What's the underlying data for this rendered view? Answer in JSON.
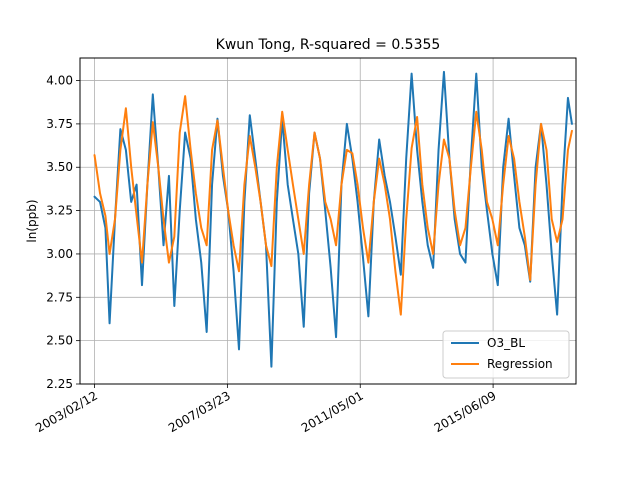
{
  "chart_data": {
    "type": "line",
    "title": "Kwun Tong, R-squared = 0.5355",
    "xlabel": "",
    "ylabel": "ln(ppb)",
    "x_tick_labels": [
      "2003/02/12",
      "2007/03/23",
      "2011/05/01",
      "2015/06/09"
    ],
    "y_ticks": [
      "2.25",
      "2.50",
      "2.75",
      "3.00",
      "3.25",
      "3.50",
      "3.75",
      "4.00"
    ],
    "ylim": [
      2.25,
      4.13
    ],
    "xlim": [
      "2002/09/01",
      "2017/12/31"
    ],
    "grid": true,
    "legend_position": "lower-right",
    "series": [
      {
        "name": "O3_BL",
        "color": "#1f77b4",
        "points": [
          [
            "2003/02/12",
            3.33
          ],
          [
            "2003/04/15",
            3.3
          ],
          [
            "2003/06/15",
            3.15
          ],
          [
            "2003/08/01",
            2.6
          ],
          [
            "2003/10/01",
            3.2
          ],
          [
            "2003/12/01",
            3.72
          ],
          [
            "2004/02/01",
            3.6
          ],
          [
            "2004/04/01",
            3.3
          ],
          [
            "2004/06/01",
            3.4
          ],
          [
            "2004/08/01",
            2.82
          ],
          [
            "2004/10/01",
            3.4
          ],
          [
            "2004/12/01",
            3.92
          ],
          [
            "2005/02/01",
            3.5
          ],
          [
            "2005/04/01",
            3.05
          ],
          [
            "2005/06/01",
            3.45
          ],
          [
            "2005/08/01",
            2.7
          ],
          [
            "2005/10/01",
            3.25
          ],
          [
            "2005/12/01",
            3.7
          ],
          [
            "2006/02/01",
            3.55
          ],
          [
            "2006/04/01",
            3.2
          ],
          [
            "2006/06/01",
            2.95
          ],
          [
            "2006/08/01",
            2.55
          ],
          [
            "2006/10/01",
            3.4
          ],
          [
            "2006/12/01",
            3.78
          ],
          [
            "2007/02/01",
            3.45
          ],
          [
            "2007/04/01",
            3.25
          ],
          [
            "2007/06/01",
            2.9
          ],
          [
            "2007/08/01",
            2.45
          ],
          [
            "2007/10/01",
            3.3
          ],
          [
            "2007/12/01",
            3.8
          ],
          [
            "2008/02/01",
            3.55
          ],
          [
            "2008/04/01",
            3.3
          ],
          [
            "2008/06/01",
            3.05
          ],
          [
            "2008/08/01",
            2.35
          ],
          [
            "2008/10/01",
            3.3
          ],
          [
            "2008/12/01",
            3.78
          ],
          [
            "2009/02/01",
            3.4
          ],
          [
            "2009/04/01",
            3.2
          ],
          [
            "2009/06/01",
            3.0
          ],
          [
            "2009/08/01",
            2.58
          ],
          [
            "2009/10/01",
            3.35
          ],
          [
            "2009/12/01",
            3.7
          ],
          [
            "2010/02/01",
            3.55
          ],
          [
            "2010/04/01",
            3.25
          ],
          [
            "2010/06/01",
            2.92
          ],
          [
            "2010/08/01",
            2.52
          ],
          [
            "2010/10/01",
            3.4
          ],
          [
            "2010/12/01",
            3.75
          ],
          [
            "2011/02/01",
            3.55
          ],
          [
            "2011/04/01",
            3.3
          ],
          [
            "2011/06/01",
            2.98
          ],
          [
            "2011/08/01",
            2.64
          ],
          [
            "2011/10/01",
            3.3
          ],
          [
            "2011/12/01",
            3.66
          ],
          [
            "2012/02/01",
            3.45
          ],
          [
            "2012/04/01",
            3.3
          ],
          [
            "2012/06/01",
            3.1
          ],
          [
            "2012/08/01",
            2.88
          ],
          [
            "2012/10/01",
            3.55
          ],
          [
            "2012/12/01",
            4.04
          ],
          [
            "2013/02/01",
            3.6
          ],
          [
            "2013/04/01",
            3.3
          ],
          [
            "2013/06/01",
            3.05
          ],
          [
            "2013/08/01",
            2.92
          ],
          [
            "2013/10/01",
            3.6
          ],
          [
            "2013/12/01",
            4.05
          ],
          [
            "2014/02/01",
            3.55
          ],
          [
            "2014/04/01",
            3.2
          ],
          [
            "2014/06/01",
            3.0
          ],
          [
            "2014/08/01",
            2.95
          ],
          [
            "2014/10/01",
            3.55
          ],
          [
            "2014/12/01",
            4.04
          ],
          [
            "2015/02/01",
            3.5
          ],
          [
            "2015/04/01",
            3.25
          ],
          [
            "2015/06/01",
            3.0
          ],
          [
            "2015/08/01",
            2.82
          ],
          [
            "2015/10/01",
            3.5
          ],
          [
            "2015/12/01",
            3.78
          ],
          [
            "2016/02/01",
            3.45
          ],
          [
            "2016/04/01",
            3.15
          ],
          [
            "2016/06/01",
            3.05
          ],
          [
            "2016/08/01",
            2.84
          ],
          [
            "2016/10/01",
            3.5
          ],
          [
            "2016/12/01",
            3.75
          ],
          [
            "2017/02/01",
            3.4
          ],
          [
            "2017/04/01",
            3.0
          ],
          [
            "2017/06/01",
            2.65
          ],
          [
            "2017/08/01",
            3.4
          ],
          [
            "2017/10/01",
            3.9
          ],
          [
            "2017/11/15",
            3.75
          ]
        ]
      },
      {
        "name": "Regression",
        "color": "#ff7f0e",
        "points": [
          [
            "2003/02/12",
            3.57
          ],
          [
            "2003/04/15",
            3.35
          ],
          [
            "2003/06/15",
            3.22
          ],
          [
            "2003/08/01",
            3.0
          ],
          [
            "2003/10/01",
            3.2
          ],
          [
            "2003/12/01",
            3.6
          ],
          [
            "2004/02/01",
            3.84
          ],
          [
            "2004/04/01",
            3.5
          ],
          [
            "2004/06/01",
            3.22
          ],
          [
            "2004/08/01",
            2.95
          ],
          [
            "2004/10/01",
            3.4
          ],
          [
            "2004/12/01",
            3.76
          ],
          [
            "2005/02/01",
            3.5
          ],
          [
            "2005/04/01",
            3.2
          ],
          [
            "2005/06/01",
            2.95
          ],
          [
            "2005/08/01",
            3.1
          ],
          [
            "2005/10/01",
            3.7
          ],
          [
            "2005/12/01",
            3.91
          ],
          [
            "2006/02/01",
            3.6
          ],
          [
            "2006/04/01",
            3.35
          ],
          [
            "2006/06/01",
            3.15
          ],
          [
            "2006/08/01",
            3.05
          ],
          [
            "2006/10/01",
            3.6
          ],
          [
            "2006/12/01",
            3.77
          ],
          [
            "2007/02/01",
            3.5
          ],
          [
            "2007/04/01",
            3.25
          ],
          [
            "2007/06/01",
            3.05
          ],
          [
            "2007/08/01",
            2.9
          ],
          [
            "2007/10/01",
            3.4
          ],
          [
            "2007/12/01",
            3.68
          ],
          [
            "2008/02/01",
            3.5
          ],
          [
            "2008/04/01",
            3.3
          ],
          [
            "2008/06/01",
            3.05
          ],
          [
            "2008/08/01",
            2.93
          ],
          [
            "2008/10/01",
            3.5
          ],
          [
            "2008/12/01",
            3.82
          ],
          [
            "2009/02/01",
            3.6
          ],
          [
            "2009/04/01",
            3.4
          ],
          [
            "2009/06/01",
            3.2
          ],
          [
            "2009/08/01",
            3.0
          ],
          [
            "2009/10/01",
            3.4
          ],
          [
            "2009/12/01",
            3.7
          ],
          [
            "2010/02/01",
            3.55
          ],
          [
            "2010/04/01",
            3.3
          ],
          [
            "2010/06/01",
            3.2
          ],
          [
            "2010/08/01",
            3.05
          ],
          [
            "2010/10/01",
            3.4
          ],
          [
            "2010/12/01",
            3.6
          ],
          [
            "2011/02/01",
            3.58
          ],
          [
            "2011/04/01",
            3.4
          ],
          [
            "2011/06/01",
            3.15
          ],
          [
            "2011/08/01",
            2.95
          ],
          [
            "2011/10/01",
            3.3
          ],
          [
            "2011/12/01",
            3.55
          ],
          [
            "2012/02/01",
            3.4
          ],
          [
            "2012/04/01",
            3.2
          ],
          [
            "2012/06/01",
            2.9
          ],
          [
            "2012/08/01",
            2.65
          ],
          [
            "2012/10/01",
            3.2
          ],
          [
            "2012/12/01",
            3.61
          ],
          [
            "2013/02/01",
            3.79
          ],
          [
            "2013/04/01",
            3.4
          ],
          [
            "2013/06/01",
            3.15
          ],
          [
            "2013/08/01",
            3.0
          ],
          [
            "2013/10/01",
            3.4
          ],
          [
            "2013/12/01",
            3.66
          ],
          [
            "2014/02/01",
            3.55
          ],
          [
            "2014/04/01",
            3.25
          ],
          [
            "2014/06/01",
            3.05
          ],
          [
            "2014/08/01",
            3.15
          ],
          [
            "2014/10/01",
            3.5
          ],
          [
            "2014/12/01",
            3.82
          ],
          [
            "2015/02/01",
            3.6
          ],
          [
            "2015/04/01",
            3.3
          ],
          [
            "2015/06/01",
            3.2
          ],
          [
            "2015/08/01",
            3.05
          ],
          [
            "2015/10/01",
            3.4
          ],
          [
            "2015/12/01",
            3.68
          ],
          [
            "2016/02/01",
            3.55
          ],
          [
            "2016/04/01",
            3.3
          ],
          [
            "2016/06/01",
            3.1
          ],
          [
            "2016/08/01",
            2.85
          ],
          [
            "2016/10/01",
            3.4
          ],
          [
            "2016/12/01",
            3.75
          ],
          [
            "2017/02/01",
            3.6
          ],
          [
            "2017/04/01",
            3.2
          ],
          [
            "2017/06/01",
            3.07
          ],
          [
            "2017/08/01",
            3.2
          ],
          [
            "2017/10/01",
            3.6
          ],
          [
            "2017/11/15",
            3.71
          ]
        ]
      }
    ]
  }
}
